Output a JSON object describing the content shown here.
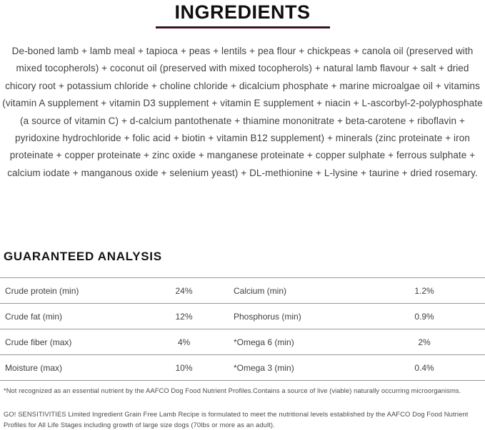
{
  "ingredients": {
    "heading": "INGREDIENTS",
    "text": "De-boned lamb + lamb meal + tapioca + peas + lentils + pea flour + chickpeas + canola oil (preserved with mixed tocopherols) + coconut oil (preserved with mixed tocopherols) + natural lamb flavour + salt + dried chicory root + potassium chloride + choline chloride + dicalcium phosphate + marine microalgae oil + vitamins (vitamin A supplement + vitamin D3 supplement + vitamin E supplement + niacin + L-ascorbyl-2-polyphosphate (a source of vitamin C) + d-calcium pantothenate + thiamine mononitrate + beta-carotene + riboflavin + pyridoxine hydrochloride + folic acid + biotin + vitamin B12 supplement) + minerals (zinc proteinate + iron proteinate + copper proteinate + zinc oxide + manganese proteinate + copper sulphate + ferrous sulphate + calcium iodate + manganous oxide + selenium yeast) + DL-methionine + L-lysine + taurine + dried rosemary."
  },
  "guaranteed_analysis": {
    "heading": "GUARANTEED ANALYSIS",
    "rows": [
      {
        "left_label": "Crude protein (min)",
        "left_value": "24%",
        "right_label": "Calcium (min)",
        "right_value": "1.2%"
      },
      {
        "left_label": "Crude fat (min)",
        "left_value": "12%",
        "right_label": "Phosphorus (min)",
        "right_value": "0.9%"
      },
      {
        "left_label": "Crude fiber (max)",
        "left_value": "4%",
        "right_label": "*Omega 6 (min)",
        "right_value": "2%"
      },
      {
        "left_label": "Moisture (max)",
        "left_value": "10%",
        "right_label": "*Omega 3 (min)",
        "right_value": "0.4%"
      }
    ],
    "footnote": "*Not recognized as an essential nutrient by the AAFCO Dog Food Nutrient Profiles.Contains a source of live (viable) naturally occurring microorganisms."
  },
  "aafco_statement": "GO! SENSITIVITIES Limited Ingredient Grain Free Lamb Recipe is formulated to meet the nutritional levels established by the AAFCO Dog Food Nutrient Profiles for All Life Stages including growth of large size dogs (70lbs or more as an adult).",
  "colors": {
    "accent_rule_top": "#1f1115",
    "accent_rule_bottom": "#642832",
    "table_line": "#999999",
    "body_text": "#414141"
  }
}
